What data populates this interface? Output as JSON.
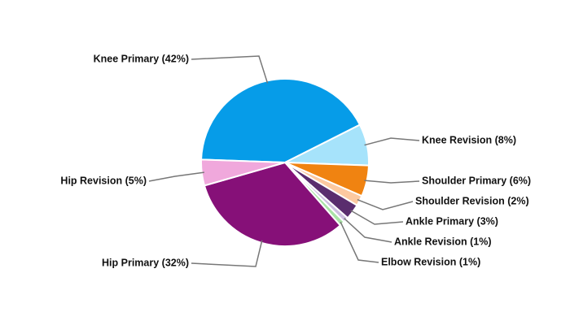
{
  "chart_data": {
    "type": "pie",
    "values": [
      42,
      8,
      6,
      2,
      3,
      1,
      1,
      32,
      5
    ],
    "value_labels": [
      "Knee Primary (42%)",
      "Knee Revision (8%)",
      "Shoulder Primary (6%)",
      "Shoulder Revision (2%)",
      "Ankle Primary (3%)",
      "Ankle Revision (1%)",
      "Elbow Revision (1%)",
      "Hip Primary (32%)",
      "Hip Revision (5%)"
    ],
    "colors": [
      "#069ce8",
      "#a6e3fb",
      "#f08311",
      "#fcc9a0",
      "#5a2d6e",
      "#cdbfe0",
      "#a9e3a6",
      "#861078",
      "#f0a8dc"
    ]
  }
}
